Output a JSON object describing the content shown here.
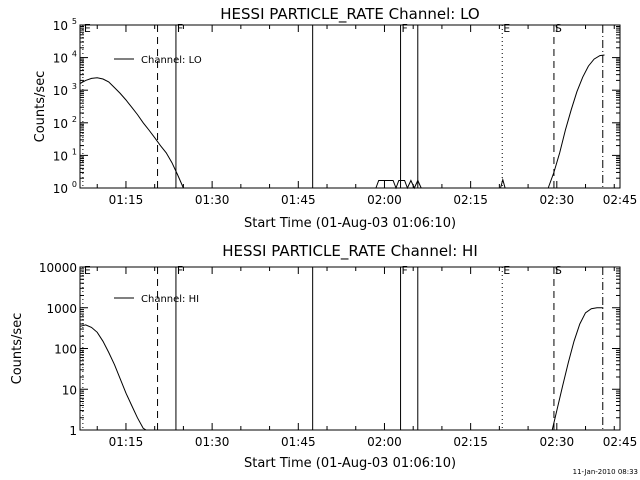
{
  "chart_data": [
    {
      "type": "line",
      "title": "HESSI PARTICLE_RATE Channel: LO",
      "xlabel": "Start Time (01-Aug-03 01:06:10)",
      "ylabel": "Counts/sec",
      "yscale": "log",
      "ylim": [
        1,
        100000
      ],
      "xlim_minutes": [
        7,
        101
      ],
      "xticks": [
        {
          "minute": 15,
          "label": "01:15"
        },
        {
          "minute": 30,
          "label": "01:30"
        },
        {
          "minute": 45,
          "label": "01:45"
        },
        {
          "minute": 60,
          "label": "02:00"
        },
        {
          "minute": 75,
          "label": "02:15"
        },
        {
          "minute": 90,
          "label": "02:30"
        },
        {
          "minute": 105,
          "label": "02:45"
        }
      ],
      "yticks": [
        {
          "value": 1,
          "base": "10",
          "exp": "0"
        },
        {
          "value": 10,
          "base": "10",
          "exp": "1"
        },
        {
          "value": 100,
          "base": "10",
          "exp": "2"
        },
        {
          "value": 1000,
          "base": "10",
          "exp": "3"
        },
        {
          "value": 10000,
          "base": "10",
          "exp": "4"
        },
        {
          "value": 100000,
          "base": "10",
          "exp": "5"
        }
      ],
      "legend": {
        "label": "Channel: LO",
        "position": "top-left"
      },
      "markers": [
        {
          "minute": 7.5,
          "label": "E",
          "style": "dotted"
        },
        {
          "minute": 20.5,
          "label": "",
          "style": "dashed"
        },
        {
          "minute": 23.7,
          "label": "F",
          "style": "solid"
        },
        {
          "minute": 47.5,
          "label": "",
          "style": "solid"
        },
        {
          "minute": 62.8,
          "label": "F",
          "style": "solid"
        },
        {
          "minute": 65.8,
          "label": "",
          "style": "solid"
        },
        {
          "minute": 80.5,
          "label": "E",
          "style": "dotted"
        },
        {
          "minute": 89.5,
          "label": "S",
          "style": "dashed"
        },
        {
          "minute": 98.0,
          "label": "",
          "style": "dashdot"
        }
      ],
      "series": [
        {
          "segments": [
            [
              [
                7,
                1600
              ],
              [
                8,
                2000
              ],
              [
                9,
                2300
              ],
              [
                10,
                2400
              ],
              [
                11,
                2200
              ],
              [
                12,
                1800
              ],
              [
                13,
                1200
              ],
              [
                14,
                800
              ],
              [
                15,
                500
              ],
              [
                16,
                300
              ],
              [
                17,
                180
              ],
              [
                18,
                100
              ],
              [
                19,
                60
              ],
              [
                20,
                35
              ],
              [
                21,
                20
              ],
              [
                22,
                12
              ],
              [
                23,
                6
              ],
              [
                24,
                2.5
              ],
              [
                25,
                1
              ]
            ],
            [
              [
                58.5,
                1
              ],
              [
                59,
                1.7
              ],
              [
                61.5,
                1.7
              ],
              [
                62,
                1
              ],
              [
                62.5,
                1.7
              ],
              [
                63.5,
                1.7
              ],
              [
                64,
                1
              ],
              [
                64.6,
                1.7
              ],
              [
                65.2,
                1
              ],
              [
                65.8,
                1.7
              ],
              [
                66.4,
                1
              ]
            ],
            [
              [
                80.2,
                1
              ],
              [
                80.6,
                1.8
              ],
              [
                81.0,
                1
              ]
            ],
            [
              [
                88.5,
                1
              ],
              [
                89.5,
                3
              ],
              [
                90.5,
                12
              ],
              [
                91.5,
                60
              ],
              [
                92.5,
                250
              ],
              [
                93.5,
                900
              ],
              [
                94.5,
                2500
              ],
              [
                95.5,
                5500
              ],
              [
                96.5,
                9000
              ],
              [
                97.5,
                11500
              ],
              [
                98.3,
                12000
              ]
            ]
          ]
        }
      ]
    },
    {
      "type": "line",
      "title": "HESSI PARTICLE_RATE Channel: HI",
      "xlabel": "Start Time (01-Aug-03 01:06:10)",
      "ylabel": "Counts/sec",
      "yscale": "log",
      "ylim": [
        1,
        10000
      ],
      "xlim_minutes": [
        7,
        101
      ],
      "xticks": [
        {
          "minute": 15,
          "label": "01:15"
        },
        {
          "minute": 30,
          "label": "01:30"
        },
        {
          "minute": 45,
          "label": "01:45"
        },
        {
          "minute": 60,
          "label": "02:00"
        },
        {
          "minute": 75,
          "label": "02:15"
        },
        {
          "minute": 90,
          "label": "02:30"
        },
        {
          "minute": 105,
          "label": "02:45"
        }
      ],
      "yticks": [
        {
          "value": 1,
          "label": "1"
        },
        {
          "value": 10,
          "label": "10"
        },
        {
          "value": 100,
          "label": "100"
        },
        {
          "value": 1000,
          "label": "1000"
        },
        {
          "value": 10000,
          "label": "10000"
        }
      ],
      "legend": {
        "label": "Channel: HI",
        "position": "top-left"
      },
      "markers": [
        {
          "minute": 7.5,
          "label": "E",
          "style": "dotted"
        },
        {
          "minute": 20.5,
          "label": "",
          "style": "dashed"
        },
        {
          "minute": 23.7,
          "label": "F",
          "style": "solid"
        },
        {
          "minute": 47.5,
          "label": "",
          "style": "solid"
        },
        {
          "minute": 62.8,
          "label": "F",
          "style": "solid"
        },
        {
          "minute": 65.8,
          "label": "",
          "style": "solid"
        },
        {
          "minute": 80.5,
          "label": "E",
          "style": "dotted"
        },
        {
          "minute": 89.5,
          "label": "S",
          "style": "dashed"
        },
        {
          "minute": 98.0,
          "label": "",
          "style": "dashdot"
        }
      ],
      "series": [
        {
          "segments": [
            [
              [
                7,
                350
              ],
              [
                8,
                380
              ],
              [
                9,
                330
              ],
              [
                10,
                250
              ],
              [
                11,
                150
              ],
              [
                12,
                80
              ],
              [
                13,
                40
              ],
              [
                14,
                18
              ],
              [
                15,
                8
              ],
              [
                16,
                4
              ],
              [
                17,
                2
              ],
              [
                18,
                1.1
              ],
              [
                18.5,
                1
              ]
            ],
            [
              [
                89.2,
                1
              ],
              [
                90,
                3
              ],
              [
                91,
                12
              ],
              [
                92,
                45
              ],
              [
                93,
                150
              ],
              [
                94,
                400
              ],
              [
                95,
                750
              ],
              [
                96,
                950
              ],
              [
                97,
                1000
              ],
              [
                98.1,
                1000
              ]
            ]
          ]
        }
      ]
    }
  ],
  "footer": {
    "timestamp": "11-Jan-2010 08:33"
  }
}
